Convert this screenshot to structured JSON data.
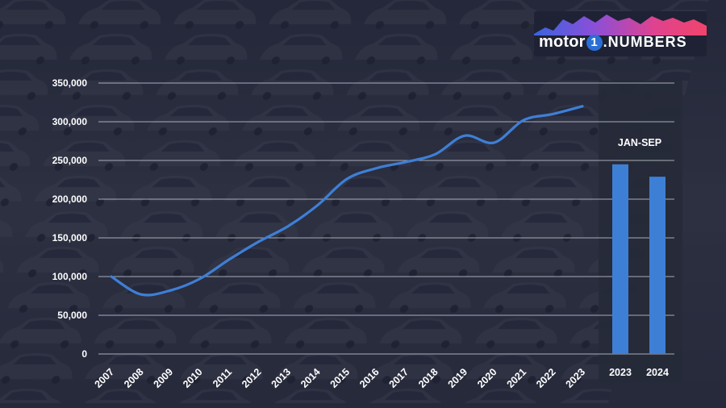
{
  "brand": {
    "logo_text_part1": "motor",
    "logo_text_one": "1",
    "logo_text_part2": ".NUMBERS"
  },
  "chart_data": [
    {
      "type": "line",
      "x": [
        "2007",
        "2008",
        "2009",
        "2010",
        "2011",
        "2012",
        "2013",
        "2014",
        "2015",
        "2016",
        "2017",
        "2018",
        "2019",
        "2020",
        "2021",
        "2022",
        "2023"
      ],
      "series": [
        {
          "values": [
            100000,
            77000,
            82000,
            97000,
            122000,
            145000,
            165000,
            192000,
            226000,
            240000,
            248000,
            258000,
            282000,
            273000,
            302000,
            310000,
            320000
          ]
        }
      ],
      "y_ticks": [
        "350,000",
        "300,000",
        "250,000",
        "200,000",
        "150,000",
        "100,000",
        "50,000",
        "0"
      ],
      "ylim": [
        0,
        350000
      ],
      "grid": true,
      "line_color": "#3e7fd6",
      "grid_color": "#bfc3cf"
    },
    {
      "type": "bar",
      "title": "JAN-SEP",
      "categories": [
        "2023",
        "2024"
      ],
      "values": [
        245000,
        229000
      ],
      "ylim": [
        0,
        350000
      ],
      "bar_color": "#3e7fd6",
      "panel_color": "#262a38"
    }
  ]
}
